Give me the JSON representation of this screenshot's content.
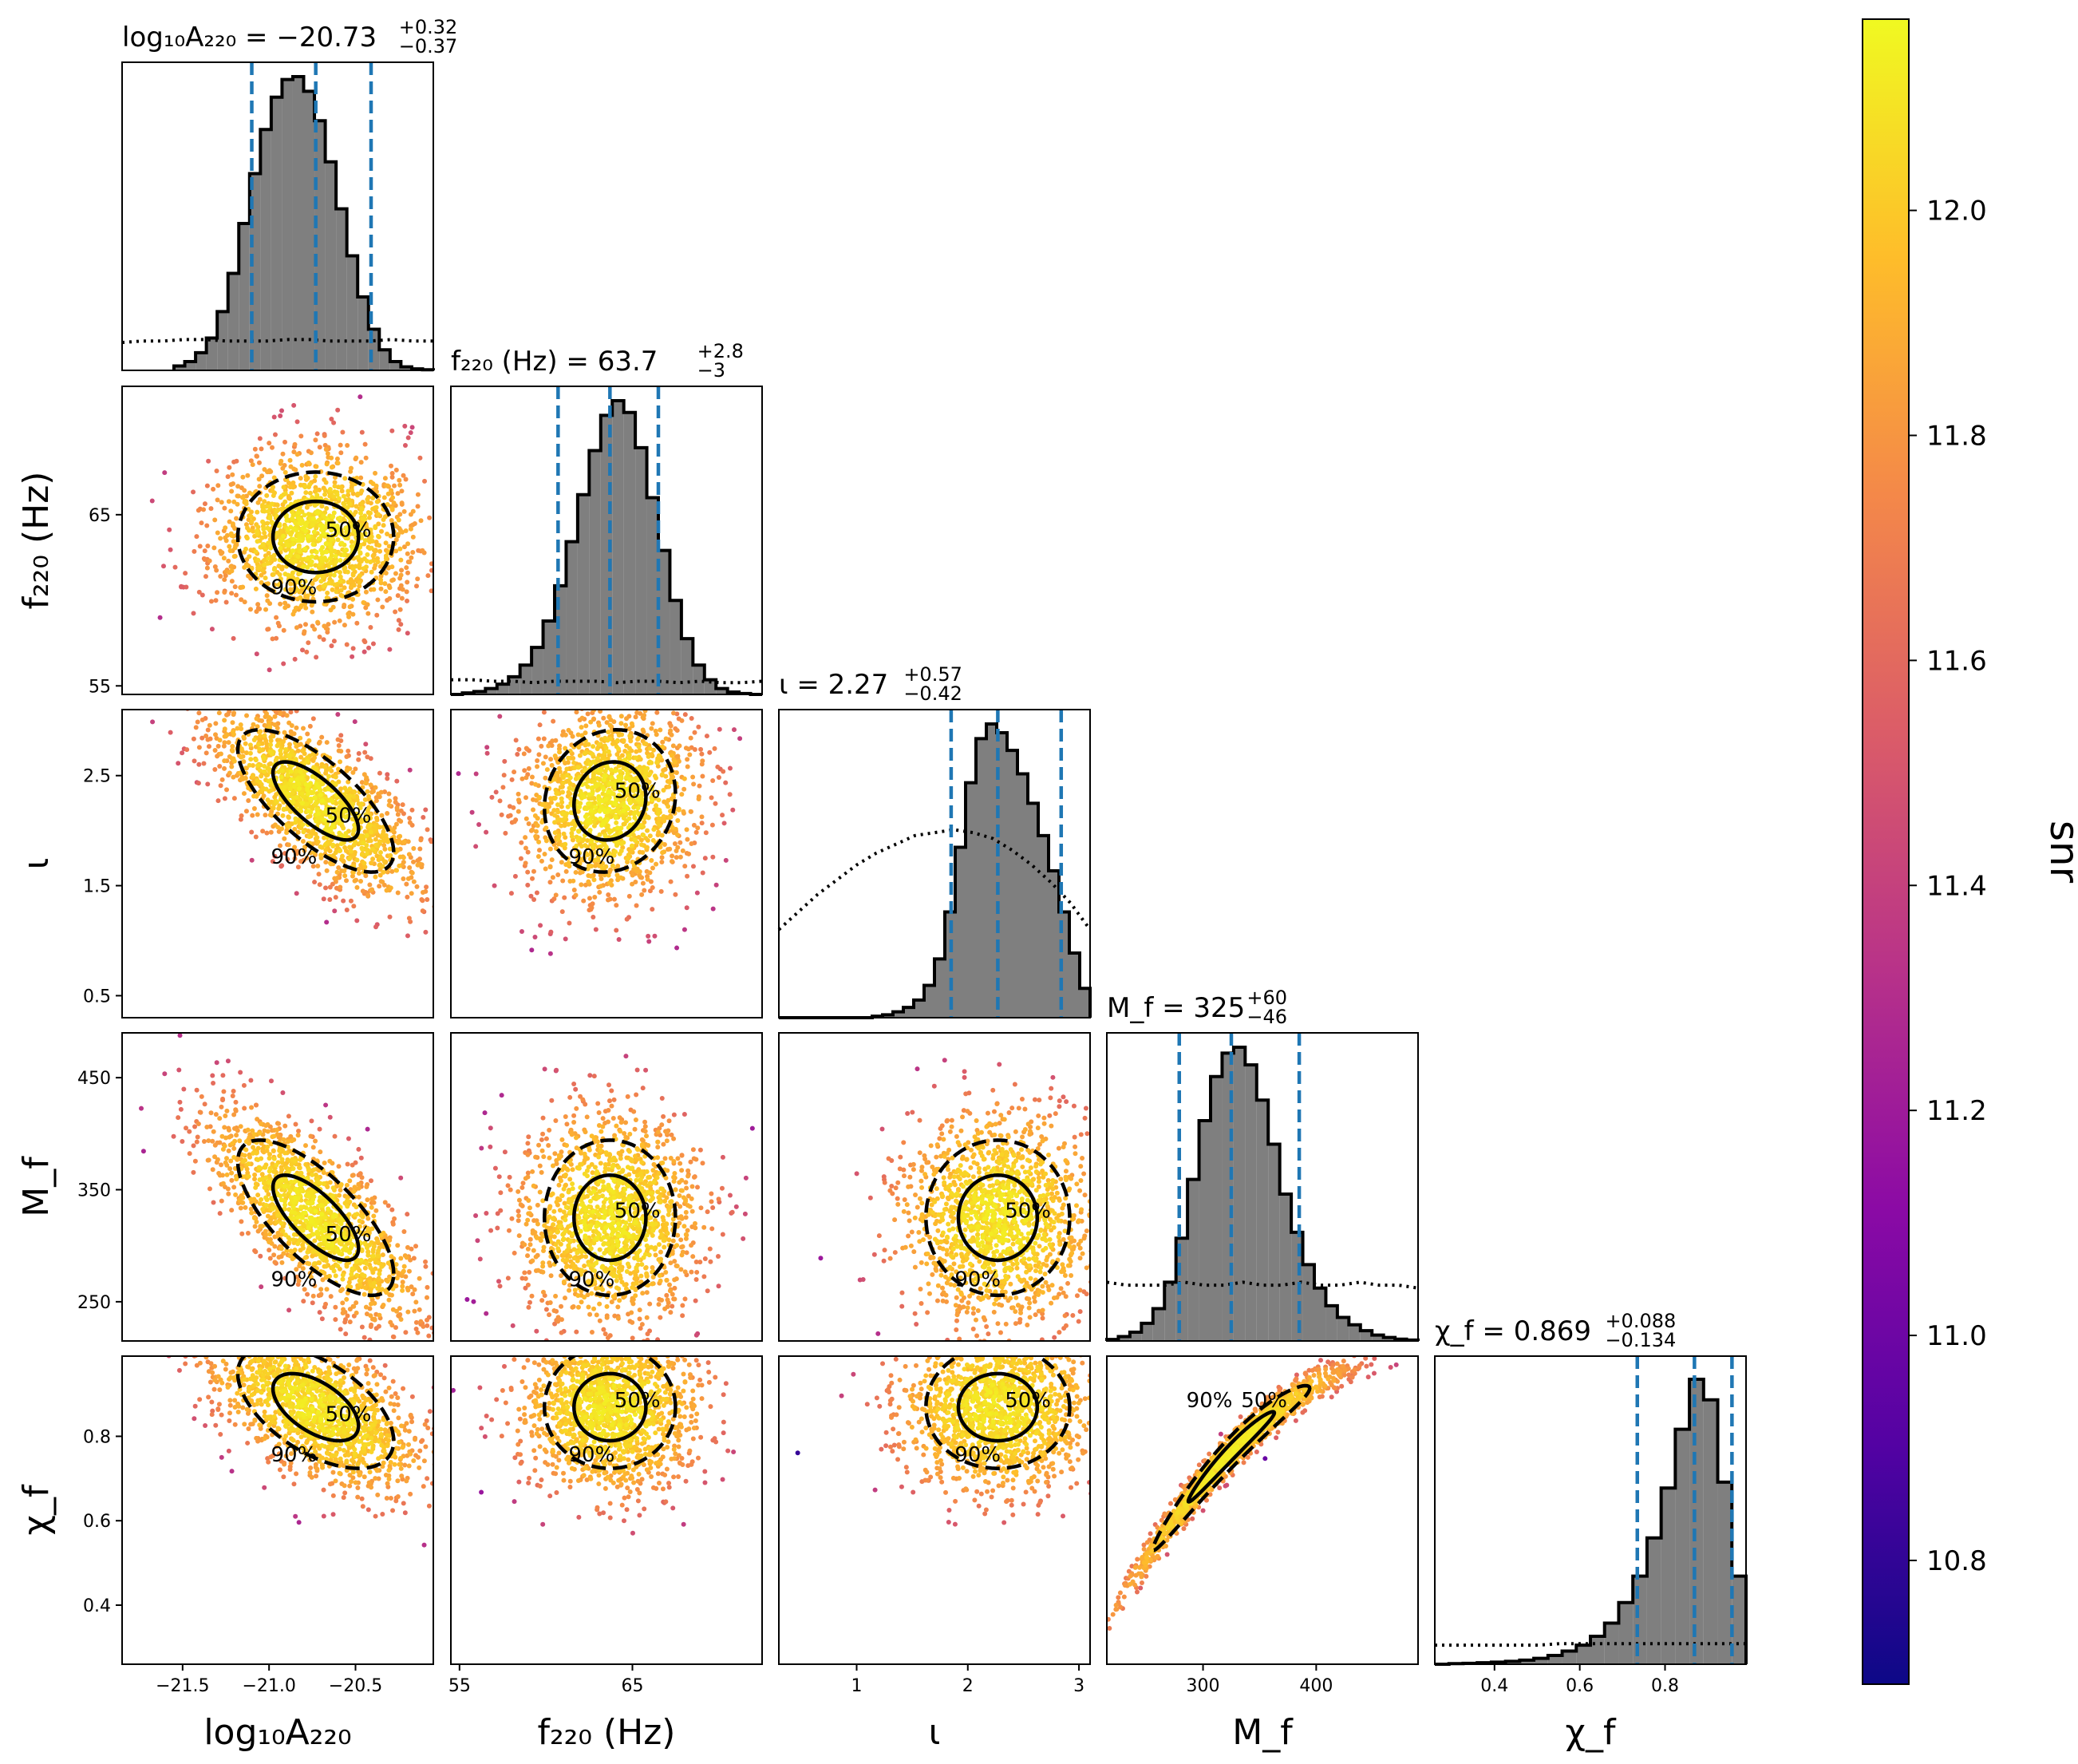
{
  "chart_data": {
    "type": "corner",
    "color_parameter": "snr",
    "colorbar": {
      "label": "snr",
      "min": 10.69,
      "max": 12.17,
      "ticks": [
        "10.8",
        "11.0",
        "11.2",
        "11.4",
        "11.6",
        "11.8",
        "12.0"
      ],
      "tick_values": [
        10.8,
        11.0,
        11.2,
        11.4,
        11.6,
        11.8,
        12.0
      ],
      "colormap": "plasma",
      "colors": [
        "#0d0887",
        "#5302a3",
        "#8b0aa5",
        "#b83289",
        "#db5c68",
        "#f48849",
        "#febd2a",
        "#f0f921"
      ]
    },
    "parameters": [
      {
        "key": "logA",
        "label": "log₁₀A₂₂₀",
        "title": "log₁₀A₂₂₀ = −20.73",
        "title_plus": "+0.32",
        "title_minus": "−0.37",
        "median": -20.73,
        "lower": -21.1,
        "upper": -20.41,
        "range": [
          -21.85,
          -20.05
        ],
        "ticks": [
          -21.5,
          -21.0,
          -20.5
        ],
        "tick_labels": [
          "−21.5",
          "−21.0",
          "−20.5"
        ],
        "hist": [
          0.015,
          0.03,
          0.06,
          0.11,
          0.2,
          0.33,
          0.5,
          0.67,
          0.82,
          0.93,
          0.99,
          1.0,
          0.95,
          0.85,
          0.71,
          0.55,
          0.39,
          0.25,
          0.14,
          0.07,
          0.03,
          0.012,
          0.005,
          0.002
        ],
        "hist_range": [
          -21.55,
          -20.05
        ],
        "prior": [
          0.095,
          0.1,
          0.1,
          0.105,
          0.105,
          0.1,
          0.1,
          0.1,
          0.105,
          0.105,
          0.1,
          0.1,
          0.1,
          0.105,
          0.1,
          0.1
        ]
      },
      {
        "key": "f220",
        "label": "f₂₂₀ (Hz)",
        "title": "f₂₂₀ (Hz) = 63.7",
        "title_plus": "+2.8",
        "title_minus": "−3",
        "median": 63.7,
        "lower": 60.7,
        "upper": 66.5,
        "range": [
          54.5,
          72.5
        ],
        "ticks": [
          55,
          65
        ],
        "tick_labels": [
          "55",
          "65"
        ],
        "hist": [
          0.0,
          0.005,
          0.01,
          0.02,
          0.035,
          0.06,
          0.1,
          0.16,
          0.25,
          0.37,
          0.52,
          0.68,
          0.83,
          0.95,
          1.0,
          0.96,
          0.84,
          0.67,
          0.49,
          0.32,
          0.19,
          0.1,
          0.05,
          0.02,
          0.008,
          0.003,
          0.0
        ],
        "hist_range": [
          54.5,
          72.5
        ],
        "prior": [
          0.05,
          0.05,
          0.045,
          0.045,
          0.04,
          0.045,
          0.045,
          0.045,
          0.04,
          0.045,
          0.045,
          0.04,
          0.045,
          0.04,
          0.04,
          0.045
        ]
      },
      {
        "key": "iota",
        "label": "ι",
        "title": "ι = 2.27",
        "title_plus": "+0.57",
        "title_minus": "−0.42",
        "median": 2.27,
        "lower": 1.85,
        "upper": 2.84,
        "range": [
          0.3,
          3.1
        ],
        "ticks": [
          1,
          2,
          3
        ],
        "tick_labels": [
          "1",
          "2",
          "3"
        ],
        "hist": [
          0.0,
          0.0,
          0.0,
          0.0,
          0.0,
          0.0,
          0.0,
          0.0,
          0.0,
          0.005,
          0.01,
          0.02,
          0.035,
          0.06,
          0.11,
          0.2,
          0.36,
          0.58,
          0.8,
          0.95,
          1.0,
          0.97,
          0.91,
          0.83,
          0.73,
          0.62,
          0.5,
          0.36,
          0.22,
          0.1
        ],
        "hist_range": [
          0.3,
          3.1
        ],
        "prior": [
          0.3,
          0.36,
          0.42,
          0.47,
          0.52,
          0.56,
          0.59,
          0.62,
          0.63,
          0.64,
          0.63,
          0.61,
          0.57,
          0.52,
          0.46,
          0.39,
          0.3
        ]
      },
      {
        "key": "Mf",
        "label": "M_f",
        "title": "M_f = 325",
        "title_plus": "+60",
        "title_minus": "−46",
        "median": 325,
        "lower": 279,
        "upper": 385,
        "range": [
          215,
          490
        ],
        "ticks": [
          300,
          400
        ],
        "tick_labels": [
          "300",
          "400"
        ],
        "ticks_y": [
          250,
          350,
          450
        ],
        "tick_labels_y": [
          "250",
          "350",
          "450"
        ],
        "hist": [
          0.005,
          0.015,
          0.03,
          0.06,
          0.11,
          0.2,
          0.35,
          0.55,
          0.75,
          0.9,
          0.98,
          1.0,
          0.94,
          0.82,
          0.67,
          0.5,
          0.37,
          0.26,
          0.18,
          0.12,
          0.08,
          0.055,
          0.035,
          0.02,
          0.012,
          0.006,
          0.003
        ],
        "hist_range": [
          215,
          490
        ],
        "prior": [
          0.2,
          0.19,
          0.19,
          0.19,
          0.2,
          0.19,
          0.19,
          0.2,
          0.19,
          0.19,
          0.2,
          0.19,
          0.19,
          0.2,
          0.19,
          0.19,
          0.18
        ]
      },
      {
        "key": "chif",
        "label": "χ_f",
        "title": "χ_f = 0.869",
        "title_plus": "+0.088",
        "title_minus": "−0.134",
        "median": 0.869,
        "lower": 0.735,
        "upper": 0.957,
        "range": [
          0.26,
          0.99
        ],
        "ticks": [
          0.4,
          0.6,
          0.8
        ],
        "tick_labels": [
          "0.4",
          "0.6",
          "0.8"
        ],
        "hist": [
          0.0,
          0.002,
          0.003,
          0.005,
          0.007,
          0.01,
          0.014,
          0.02,
          0.03,
          0.045,
          0.065,
          0.095,
          0.14,
          0.21,
          0.3,
          0.43,
          0.6,
          0.8,
          0.97,
          0.9,
          0.62,
          0.3
        ],
        "hist_range": [
          0.26,
          0.99
        ],
        "prior": [
          0.065,
          0.065,
          0.065,
          0.065,
          0.065,
          0.065,
          0.07,
          0.07,
          0.07,
          0.07,
          0.07,
          0.07,
          0.07,
          0.07,
          0.07,
          0.07
        ]
      }
    ],
    "contour_labels": [
      "50%",
      "90%"
    ],
    "correlations": {
      "1_0": 0.0,
      "2_0": -0.72,
      "2_1": 0.1,
      "3_0": -0.72,
      "3_1": 0.0,
      "3_2": 0.0,
      "4_0": -0.55,
      "4_1": 0.0,
      "4_2": 0.0,
      "4_3": 0.92
    }
  }
}
